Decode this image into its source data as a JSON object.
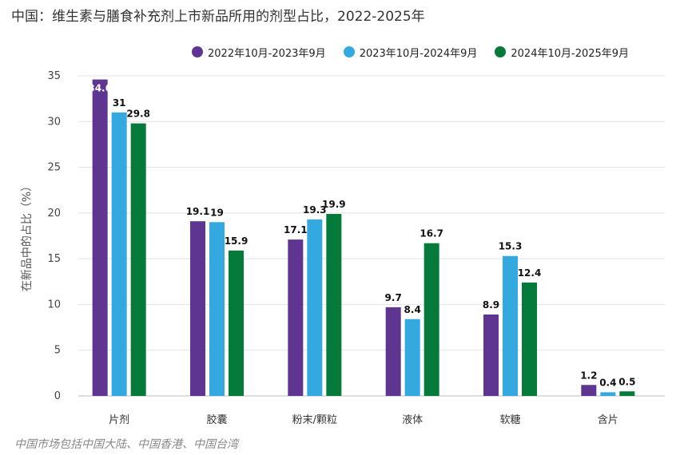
{
  "chart_data": {
    "type": "bar",
    "title": "中国：维生素与膳食补充剂上市新品所用的剂型占比，2022-2025年",
    "ylabel": "在新品中的占比（%）",
    "xlabel": "",
    "categories": [
      "片剂",
      "胶囊",
      "粉末/颗粒",
      "液体",
      "软糖",
      "含片"
    ],
    "series": [
      {
        "name": "2022年10月-2023年9月",
        "color": "#5e3590",
        "values": [
          34.6,
          19.1,
          17.1,
          9.7,
          8.9,
          1.2
        ]
      },
      {
        "name": "2023年10月-2024年9月",
        "color": "#33a9e0",
        "values": [
          31,
          19,
          19.3,
          8.4,
          15.3,
          0.4
        ]
      },
      {
        "name": "2024年10月-2025年9月",
        "color": "#057a3b",
        "values": [
          29.8,
          15.9,
          19.9,
          16.7,
          12.4,
          0.5
        ]
      }
    ],
    "ylim": [
      0,
      35
    ],
    "yticks": [
      0,
      5,
      10,
      15,
      20,
      25,
      30,
      35
    ],
    "grid": true,
    "legend_position": "top-right",
    "footnote": "中国市场包括中国大陆、中国香港、中国台湾"
  }
}
